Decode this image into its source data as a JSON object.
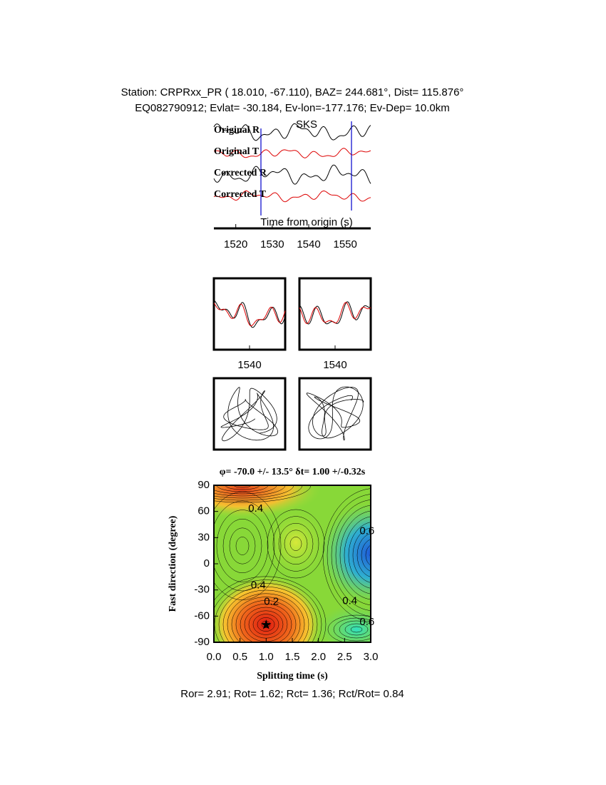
{
  "header": {
    "line1": "Station: CRPRxx_PR (  18.010,  -67.110), BAZ=  244.681°, Dist=  115.876°",
    "line2": "EQ082790912; Evlat= -30.184, Ev-lon=-177.176; Ev-Dep= 10.0km"
  },
  "chart_data": [
    {
      "type": "waveform",
      "traces": [
        "Original R",
        "Original T",
        "Corrected R",
        "Corrected T"
      ],
      "phase": "SKS",
      "xlabel": "Time from origin (s)",
      "xlim": [
        1514,
        1557
      ],
      "xticks": [
        1520,
        1530,
        1540,
        1550
      ],
      "panel_xlim": [
        1530,
        1550
      ],
      "panel_xticks": [
        1540
      ]
    },
    {
      "type": "contour",
      "title": "φ= -70.0 +/- 13.5° δt= 1.00 +/-0.32s",
      "xlabel": "Splitting time (s)",
      "ylabel": "Fast direction (degree)",
      "xlim": [
        0,
        3
      ],
      "ylim": [
        -90,
        90
      ],
      "xticks": [
        {
          "value": 0,
          "label": "0.0"
        },
        {
          "value": 0.5,
          "label": "0.5"
        },
        {
          "value": 1,
          "label": "1.0"
        },
        {
          "value": 1.5,
          "label": "1.5"
        },
        {
          "value": 2,
          "label": "2.0"
        },
        {
          "value": 2.5,
          "label": "2.5"
        },
        {
          "value": 3,
          "label": "3.0"
        }
      ],
      "yticks": [
        -90,
        -60,
        -30,
        0,
        30,
        60,
        90
      ],
      "points": {
        "x": [
          1.0
        ],
        "y": [
          -70
        ]
      },
      "contour_labels": [
        {
          "level": 0.4,
          "x": 0.8,
          "y": 63
        },
        {
          "level": 0.4,
          "x": 0.85,
          "y": -25
        },
        {
          "level": 0.2,
          "x": 1.1,
          "y": -44
        },
        {
          "level": 0.4,
          "x": 2.6,
          "y": -43
        },
        {
          "level": 0.6,
          "x": 2.93,
          "y": 37
        },
        {
          "level": 0.6,
          "x": 2.93,
          "y": -67
        }
      ]
    }
  ],
  "footer": "Ror= 2.91; Rot= 1.62; Rct= 1.36; Rct/Rot= 0.84"
}
